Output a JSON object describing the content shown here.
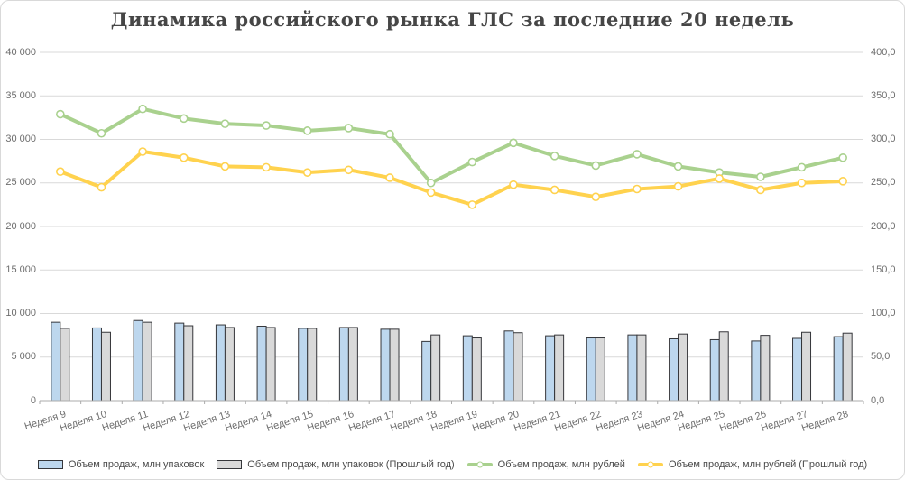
{
  "title": "Динамика российского рынка ГЛС за последние 20 недель",
  "colors": {
    "bar_current_fill": "#bdd7ee",
    "bar_prev_fill": "#d9d9d9",
    "bar_border": "#35363a",
    "line_current": "#a9d18e",
    "line_prev": "#ffd24e",
    "gridline": "#d9d9d9",
    "axis_line": "#ababab",
    "tick_text": "#6e6e6e",
    "title_text": "#464646"
  },
  "chart_data": {
    "type": "combo",
    "grid": true,
    "legend_position": "bottom",
    "categories": [
      "Неделя 9",
      "Неделя 10",
      "Неделя 11",
      "Неделя 12",
      "Неделя 13",
      "Неделя 14",
      "Неделя 15",
      "Неделя 16",
      "Неделя 17",
      "Неделя 18",
      "Неделя 19",
      "Неделя 20",
      "Неделя 21",
      "Неделя 22",
      "Неделя 23",
      "Неделя 24",
      "Неделя 25",
      "Неделя 26",
      "Неделя 27",
      "Неделя 28"
    ],
    "left_axis": {
      "min": 0,
      "max": 40000,
      "step": 5000,
      "tick_labels": [
        "0",
        "5 000",
        "10 000",
        "15 000",
        "20 000",
        "25 000",
        "30 000",
        "35 000",
        "40 000"
      ]
    },
    "right_axis": {
      "min": 0,
      "max": 400,
      "step": 50,
      "tick_labels": [
        "0,0",
        "50,0",
        "100,0",
        "150,0",
        "200,0",
        "250,0",
        "300,0",
        "350,0",
        "400,0"
      ]
    },
    "series": [
      {
        "name": "Объем продаж, млн упаковок",
        "kind": "bar",
        "axis": "right",
        "color": "#bdd7ee",
        "values": [
          90.0,
          83.5,
          92.0,
          89.0,
          87.0,
          85.5,
          83.0,
          84.0,
          82.0,
          68.0,
          74.5,
          80.0,
          74.5,
          72.0,
          75.5,
          71.0,
          70.0,
          68.5,
          71.5,
          73.5
        ]
      },
      {
        "name": "Объем продаж, млн упаковок (Прошлый год)",
        "kind": "bar",
        "axis": "right",
        "color": "#d9d9d9",
        "values": [
          83.0,
          78.5,
          90.0,
          86.0,
          84.0,
          84.0,
          83.0,
          84.0,
          82.0,
          75.5,
          72.0,
          78.0,
          75.5,
          72.0,
          75.5,
          76.5,
          79.0,
          75.0,
          78.5,
          77.5
        ]
      },
      {
        "name": "Объем продаж, млн рублей",
        "kind": "line",
        "axis": "left",
        "color": "#a9d18e",
        "values": [
          32900,
          30700,
          33500,
          32400,
          31800,
          31600,
          31000,
          31300,
          30600,
          25000,
          27400,
          29600,
          28100,
          27000,
          28300,
          26900,
          26200,
          25700,
          26800,
          27900
        ]
      },
      {
        "name": "Объем продаж, млн рублей (Прошлый год)",
        "kind": "line",
        "axis": "left",
        "color": "#ffd24e",
        "values": [
          26300,
          24500,
          28600,
          27900,
          26900,
          26800,
          26200,
          26500,
          25600,
          23900,
          22500,
          24800,
          24200,
          23400,
          24300,
          24600,
          25500,
          24200,
          25000,
          25200
        ]
      }
    ]
  }
}
